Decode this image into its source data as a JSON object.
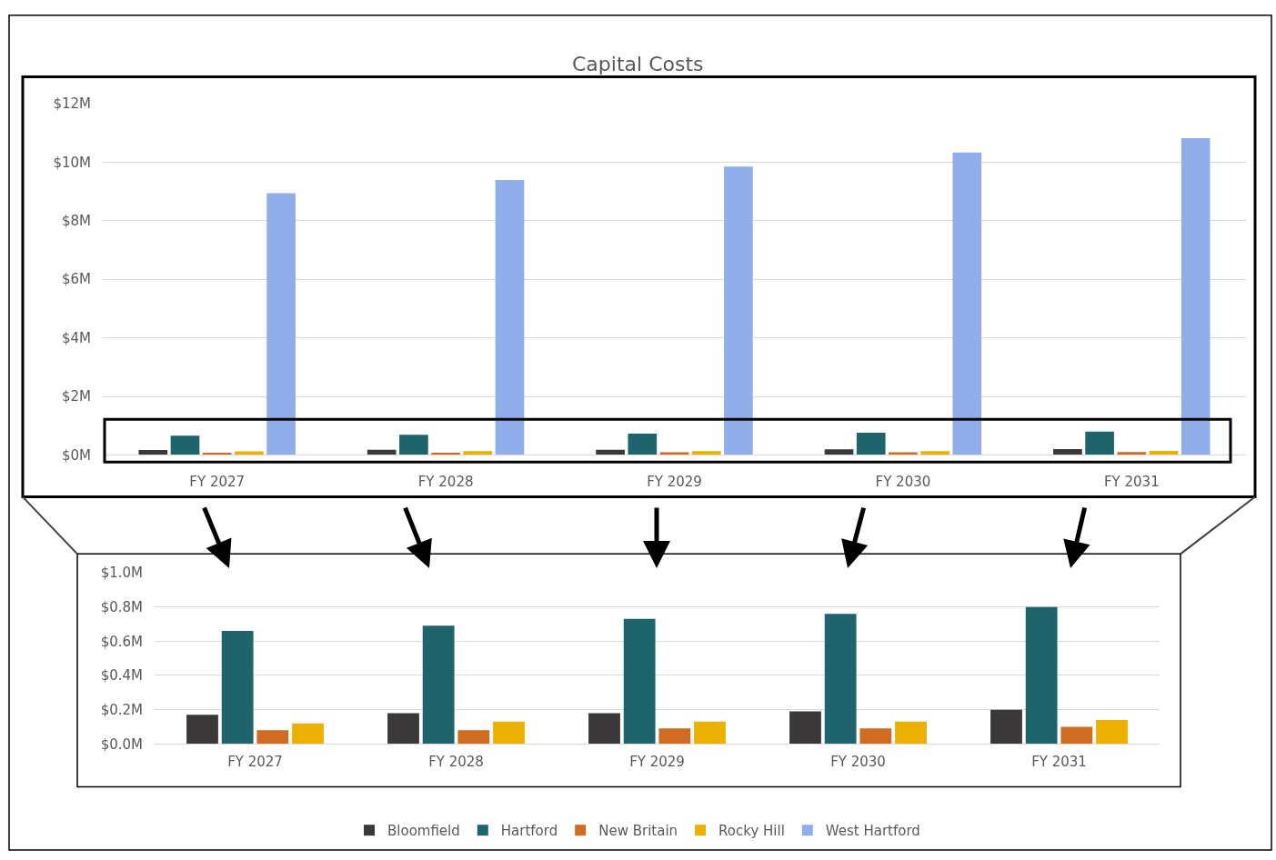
{
  "chart_data": [
    {
      "type": "bar",
      "title": "Capital Costs",
      "categories": [
        "FY 2027",
        "FY 2028",
        "FY 2029",
        "FY 2030",
        "FY 2031"
      ],
      "series": [
        {
          "name": "Bloomfield",
          "color": "#3a3838",
          "values": [
            0.17,
            0.18,
            0.18,
            0.19,
            0.2
          ]
        },
        {
          "name": "Hartford",
          "color": "#1f646c",
          "values": [
            0.66,
            0.69,
            0.73,
            0.76,
            0.8
          ]
        },
        {
          "name": "New Britain",
          "color": "#d06b22",
          "values": [
            0.08,
            0.08,
            0.09,
            0.09,
            0.1
          ]
        },
        {
          "name": "Rocky Hill",
          "color": "#ebb000",
          "values": [
            0.12,
            0.13,
            0.13,
            0.13,
            0.14
          ]
        },
        {
          "name": "West Hartford",
          "color": "#8faeea",
          "values": [
            8.94,
            9.39,
            9.85,
            10.33,
            10.82
          ]
        }
      ],
      "ylim": [
        0,
        12
      ],
      "yticks": [
        {
          "value": 0,
          "label": "$0M"
        },
        {
          "value": 2,
          "label": "$2M"
        },
        {
          "value": 4,
          "label": "$4M"
        },
        {
          "value": 6,
          "label": "$6M"
        },
        {
          "value": 8,
          "label": "$8M"
        },
        {
          "value": 10,
          "label": "$10M"
        },
        {
          "value": 12,
          "label": "$12M"
        }
      ],
      "grid": "y",
      "legend": "bottom"
    },
    {
      "type": "bar",
      "categories": [
        "FY 2027",
        "FY 2028",
        "FY 2029",
        "FY 2030",
        "FY 2031"
      ],
      "series": [
        {
          "color": "#3a3838",
          "values": [
            0.17,
            0.18,
            0.18,
            0.19,
            0.2
          ]
        },
        {
          "color": "#1f646c",
          "values": [
            0.66,
            0.69,
            0.73,
            0.76,
            0.8
          ]
        },
        {
          "color": "#d06b22",
          "values": [
            0.08,
            0.08,
            0.09,
            0.09,
            0.1
          ]
        },
        {
          "color": "#ebb000",
          "values": [
            0.12,
            0.13,
            0.13,
            0.13,
            0.14
          ]
        }
      ],
      "ylim": [
        0,
        1
      ],
      "yticks": [
        {
          "value": 0,
          "label": "$0.0M"
        },
        {
          "value": 0.2,
          "label": "$0.2M"
        },
        {
          "value": 0.4,
          "label": "$0.4M"
        },
        {
          "value": 0.6,
          "label": "$0.6M"
        },
        {
          "value": 0.8,
          "label": "$0.8M"
        },
        {
          "value": 1,
          "label": "$1.0M"
        }
      ],
      "grid": "y"
    }
  ]
}
